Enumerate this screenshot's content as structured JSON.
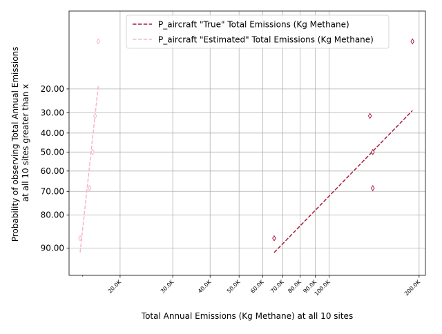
{
  "chart_data": {
    "type": "scatter",
    "xlabel": "Total Annual Emissions (Kg Methane) at all 10 sites",
    "ylabel_lines": [
      "Probability of observing Total Annual Emissions",
      "at all 10 sites greater than x"
    ],
    "xscale": "log",
    "yscale": "probability (normal quantile)",
    "xlim": [
      13500,
      210000
    ],
    "ylim": [
      95,
      3
    ],
    "x_ticks": [
      {
        "value": 20000,
        "label": "20.0K"
      },
      {
        "value": 30000,
        "label": "30.0K"
      },
      {
        "value": 40000,
        "label": "40.0K"
      },
      {
        "value": 50000,
        "label": "50.0K"
      },
      {
        "value": 60000,
        "label": "60.0K"
      },
      {
        "value": 70000,
        "label": "70.0K"
      },
      {
        "value": 80000,
        "label": "80.0K"
      },
      {
        "value": 90000,
        "label": "90.0K"
      },
      {
        "value": 100000,
        "label": "100.0K"
      },
      {
        "value": 200000,
        "label": "200.0K"
      }
    ],
    "x_minor_ticks": [
      15000
    ],
    "y_ticks": [
      {
        "value": 20,
        "label": "20.00"
      },
      {
        "value": 30,
        "label": "30.00"
      },
      {
        "value": 40,
        "label": "40.00"
      },
      {
        "value": 50,
        "label": "50.00"
      },
      {
        "value": 60,
        "label": "60.00"
      },
      {
        "value": 70,
        "label": "70.00"
      },
      {
        "value": 80,
        "label": "80.00"
      },
      {
        "value": 90,
        "label": "90.00"
      }
    ],
    "grid": true,
    "legend_position": "top-right",
    "series": [
      {
        "name": "P_aircraft \"True\" Total Emissions (Kg Methane)",
        "color": "#a31f3c",
        "points": {
          "x": [
            65500,
            140000,
            140000,
            137000,
            190000
          ],
          "y": [
            87.5,
            68.5,
            50.0,
            31.5,
            7.0
          ]
        },
        "fit_line": {
          "x": [
            65500,
            190000
          ],
          "y": [
            91.0,
            29.0
          ]
        }
      },
      {
        "name": "P_aircraft \"Estimated\" Total Emissions (Kg Methane)",
        "color": "#f7b6c8",
        "points": {
          "x": [
            14700,
            15800,
            16200,
            16500,
            16900
          ],
          "y": [
            87.5,
            68.5,
            50.0,
            31.5,
            7.0
          ]
        },
        "fit_line": {
          "x": [
            14700,
            16900
          ],
          "y": [
            91.0,
            19.0
          ]
        }
      }
    ]
  }
}
